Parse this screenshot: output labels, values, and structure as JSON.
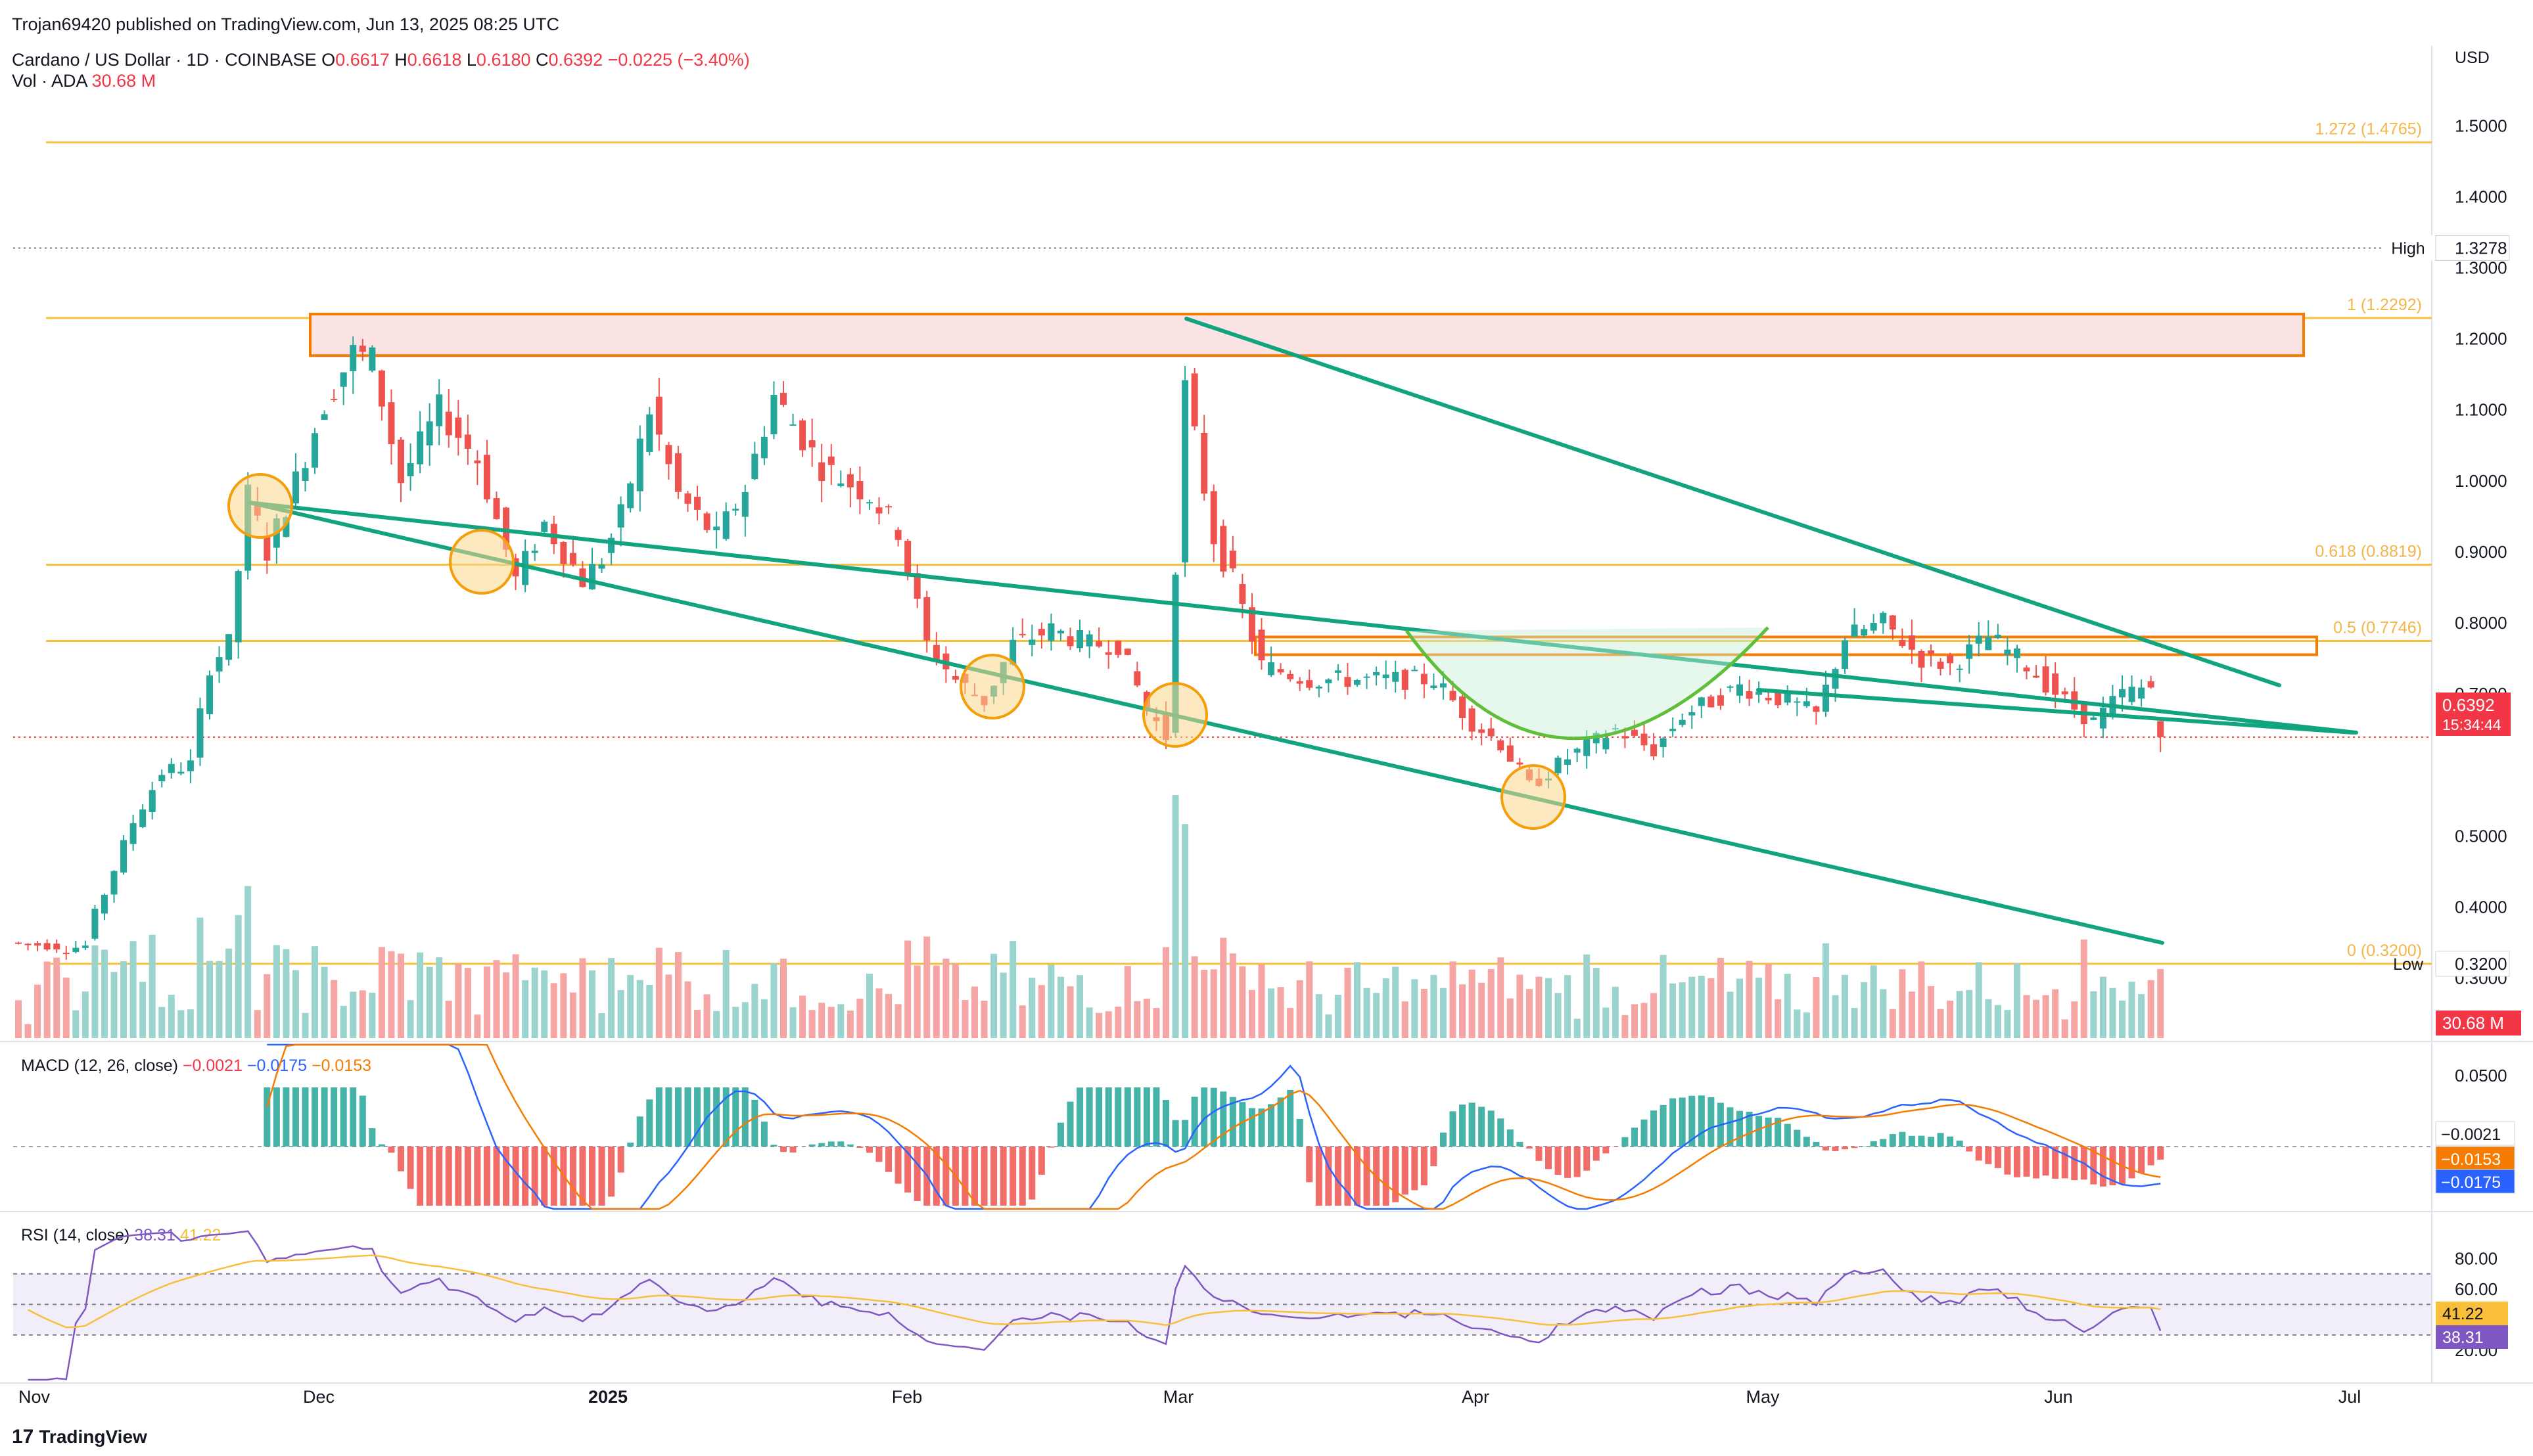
{
  "header": {
    "published": "Trojan69420 published on TradingView.com, Jun 13, 2025 08:25 UTC",
    "symbol": "Cardano / US Dollar · 1D · COINBASE",
    "ohlc": {
      "o_label": "O",
      "o": "0.6617",
      "h_label": "H",
      "h": "0.6618",
      "l_label": "L",
      "l": "0.6180",
      "c_label": "C",
      "c": "0.6392",
      "change": "−0.0225 (−3.40%)"
    },
    "vol_label": "Vol · ADA",
    "vol_value": "30.68 M",
    "currency": "USD"
  },
  "macd": {
    "title": "MACD (12, 26, close)",
    "v1": "−0.0021",
    "v2": "−0.0175",
    "v3": "−0.0153"
  },
  "rsi": {
    "title": "RSI (14, close)",
    "v1": "38.31",
    "v2": "41.22"
  },
  "footer": {
    "brand": "TradingView",
    "brand_icon": "tradingview-logo-icon"
  },
  "colors": {
    "up": "#26a69a",
    "down": "#ef5350",
    "trend": "#12a37f",
    "fib": "#f9bf3b",
    "zone": "#fce4e4",
    "zone_border": "#f57c00",
    "macd": "#2962ff",
    "signal": "#f57c00",
    "rsi": "#7e57c2",
    "rsi_ma": "#f9bf3b"
  },
  "chart_data": [
    {
      "type": "candlestick",
      "title": "Cardano / US Dollar · 1D · COINBASE",
      "x_ticks": [
        "Nov",
        "Dec",
        "2025",
        "Feb",
        "Mar",
        "Apr",
        "May",
        "Jun",
        "Jul"
      ],
      "y_ticks": [
        "1.5000",
        "1.4000",
        "1.3000",
        "1.2000",
        "1.1000",
        "1.0000",
        "0.9000",
        "0.8000",
        "0.7000",
        "0.5000",
        "0.4000",
        "0.3000"
      ],
      "ylim": [
        0.28,
        1.56
      ],
      "price_labels": {
        "high_label": "High",
        "high_value": "1.3278",
        "low_label": "Low",
        "low_value": "0.3200",
        "last_price": "0.6392",
        "countdown": "15:34:44",
        "volume": "30.68 M"
      },
      "fib_levels": [
        {
          "ratio_label": "1.272 (1.4765)",
          "price": 1.4765
        },
        {
          "ratio_label": "1 (1.2292)",
          "price": 1.2292
        },
        {
          "ratio_label": "0.618 (0.8819)",
          "price": 0.8819
        },
        {
          "ratio_label": "0.5 (0.7746)",
          "price": 0.7746
        },
        {
          "ratio_label": "0 (0.3200)",
          "price": 0.32
        }
      ],
      "ohlc_anchors": [
        [
          "2024-11-01",
          0.35,
          0.345
        ],
        [
          "2024-11-06",
          0.34,
          0.345
        ],
        [
          "2024-11-09",
          0.36,
          0.42
        ],
        [
          "2024-11-11",
          0.42,
          0.52
        ],
        [
          "2024-11-14",
          0.52,
          0.59
        ],
        [
          "2024-11-17",
          0.59,
          0.6
        ],
        [
          "2024-11-20",
          0.6,
          0.74
        ],
        [
          "2024-11-22",
          0.74,
          0.77
        ],
        [
          "2024-11-24",
          0.77,
          0.98
        ],
        [
          "2024-11-26",
          0.98,
          0.9
        ],
        [
          "2024-11-28",
          0.9,
          1.0
        ],
        [
          "2024-12-01",
          1.0,
          1.11
        ],
        [
          "2024-12-04",
          1.11,
          1.18
        ],
        [
          "2024-12-07",
          1.18,
          1.17
        ],
        [
          "2024-12-09",
          1.17,
          1.0
        ],
        [
          "2024-12-12",
          1.0,
          1.1
        ],
        [
          "2024-12-16",
          1.1,
          1.03
        ],
        [
          "2024-12-20",
          1.03,
          0.86
        ],
        [
          "2024-12-24",
          0.86,
          0.94
        ],
        [
          "2024-12-27",
          0.94,
          0.86
        ],
        [
          "2024-12-31",
          0.86,
          0.89
        ],
        [
          "2025-01-02",
          0.89,
          0.95
        ],
        [
          "2025-01-04",
          0.95,
          1.1
        ],
        [
          "2025-01-07",
          1.1,
          0.98
        ],
        [
          "2025-01-10",
          0.98,
          0.92
        ],
        [
          "2025-01-14",
          0.92,
          0.99
        ],
        [
          "2025-01-17",
          0.99,
          1.12
        ],
        [
          "2025-01-20",
          1.12,
          1.02
        ],
        [
          "2025-01-25",
          1.02,
          0.98
        ],
        [
          "2025-01-30",
          0.98,
          0.93
        ],
        [
          "2025-02-02",
          0.93,
          0.77
        ],
        [
          "2025-02-05",
          0.77,
          0.72
        ],
        [
          "2025-02-08",
          0.72,
          0.69
        ],
        [
          "2025-02-11",
          0.69,
          0.77
        ],
        [
          "2025-02-14",
          0.77,
          0.79
        ],
        [
          "2025-02-18",
          0.79,
          0.77
        ],
        [
          "2025-02-22",
          0.77,
          0.77
        ],
        [
          "2025-02-25",
          0.77,
          0.68
        ],
        [
          "2025-02-28",
          0.68,
          0.64
        ],
        [
          "2025-03-02",
          0.64,
          1.13
        ],
        [
          "2025-03-04",
          1.13,
          0.92
        ],
        [
          "2025-03-07",
          0.92,
          0.86
        ],
        [
          "2025-03-09",
          0.86,
          0.74
        ],
        [
          "2025-03-12",
          0.74,
          0.72
        ],
        [
          "2025-03-17",
          0.72,
          0.72
        ],
        [
          "2025-03-22",
          0.72,
          0.72
        ],
        [
          "2025-03-26",
          0.72,
          0.72
        ],
        [
          "2025-03-30",
          0.72,
          0.66
        ],
        [
          "2025-04-03",
          0.66,
          0.63
        ],
        [
          "2025-04-06",
          0.63,
          0.57
        ],
        [
          "2025-04-09",
          0.57,
          0.61
        ],
        [
          "2025-04-13",
          0.61,
          0.65
        ],
        [
          "2025-04-18",
          0.65,
          0.62
        ],
        [
          "2025-04-22",
          0.62,
          0.67
        ],
        [
          "2025-04-25",
          0.67,
          0.71
        ],
        [
          "2025-05-01",
          0.71,
          0.69
        ],
        [
          "2025-05-06",
          0.69,
          0.67
        ],
        [
          "2025-05-09",
          0.67,
          0.78
        ],
        [
          "2025-05-12",
          0.78,
          0.8
        ],
        [
          "2025-05-16",
          0.8,
          0.75
        ],
        [
          "2025-05-20",
          0.75,
          0.74
        ],
        [
          "2025-05-23",
          0.74,
          0.78
        ],
        [
          "2025-05-27",
          0.78,
          0.74
        ],
        [
          "2025-05-31",
          0.74,
          0.69
        ],
        [
          "2025-06-04",
          0.69,
          0.66
        ],
        [
          "2025-06-07",
          0.66,
          0.7
        ],
        [
          "2025-06-10",
          0.7,
          0.71
        ],
        [
          "2025-06-13",
          0.6617,
          0.6392
        ]
      ],
      "volume_relative": "0..1 scaled, peak near 2025-03-02 and 2024-11-24",
      "rsi_levels": [
        "80.00",
        "60.00",
        "20.00"
      ],
      "macd_ticks": [
        "0.0500"
      ],
      "axis_labels": {
        "macd_v1": "−0.0021",
        "macd_v2": "−0.0153",
        "macd_v3": "−0.0175",
        "rsi_v1": "41.22",
        "rsi_v2": "38.31"
      },
      "grid": false
    }
  ]
}
